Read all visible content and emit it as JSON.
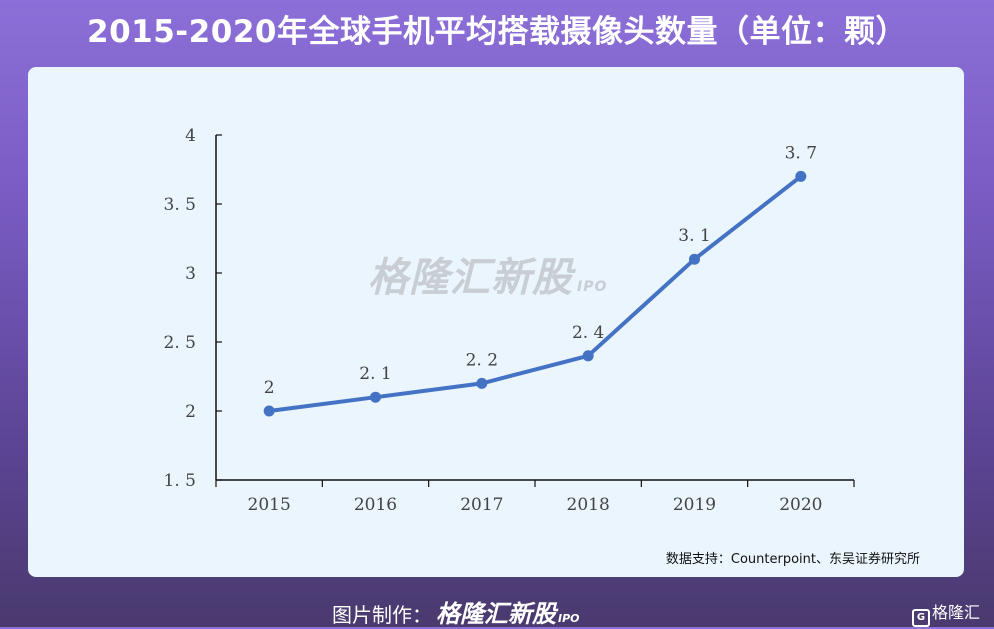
{
  "header": {
    "title": "2015-2020年全球手机平均搭载摄像头数量（单位：颗）"
  },
  "watermark": {
    "brand": "格隆汇新股",
    "sub": "IPO"
  },
  "source": "数据支持：Counterpoint、东吴证券研究所",
  "footer": {
    "credit_label": "图片制作：",
    "credit_brand": "格隆汇新股",
    "credit_sub": "IPO",
    "corner_logo_mark": "G",
    "corner_logo_text": "格隆汇"
  },
  "chart_data": {
    "type": "line",
    "title": "2015-2020年全球手机平均搭载摄像头数量（单位：颗）",
    "xlabel": "",
    "ylabel": "",
    "categories": [
      "2015",
      "2016",
      "2017",
      "2018",
      "2019",
      "2020"
    ],
    "series": [
      {
        "values": [
          2,
          2.1,
          2.2,
          2.4,
          3.1,
          3.7
        ],
        "color": "#4472c4"
      }
    ],
    "data_labels": [
      "2",
      "2. 1",
      "2. 2",
      "2. 4",
      "3. 1",
      "3. 7"
    ],
    "y_ticks": [
      1.5,
      2,
      2.5,
      3,
      3.5,
      4
    ],
    "y_tick_labels": [
      "1. 5",
      "2",
      "2. 5",
      "3",
      "3. 5",
      "4"
    ],
    "ylim": [
      1.5,
      4
    ],
    "grid": false,
    "legend": "none"
  }
}
